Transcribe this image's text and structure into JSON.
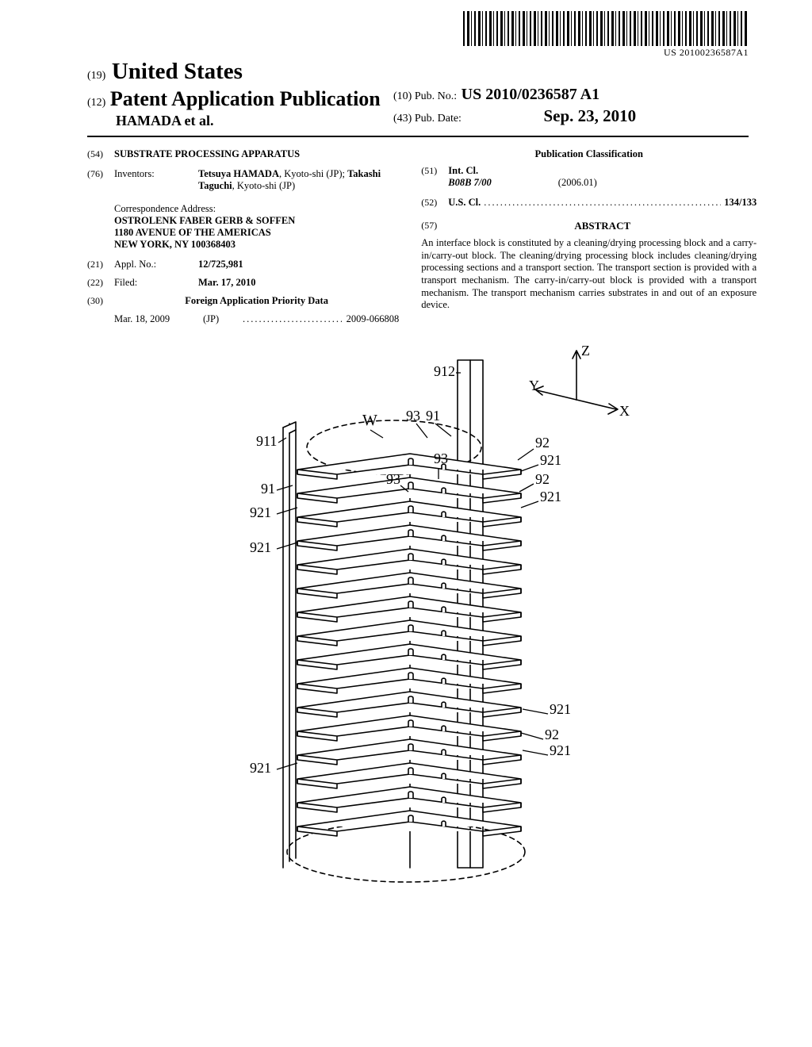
{
  "barcode_label": "US 20100236587A1",
  "header": {
    "code19": "(19)",
    "country": "United States",
    "code12": "(12)",
    "pub_type": "Patent Application Publication",
    "authors": "HAMADA et al.",
    "code10": "(10)",
    "pub_no_label": "Pub. No.:",
    "pub_no": "US 2010/0236587 A1",
    "code43": "(43)",
    "pub_date_label": "Pub. Date:",
    "pub_date": "Sep. 23, 2010"
  },
  "left": {
    "f54": {
      "num": "(54)",
      "value": "SUBSTRATE PROCESSING APPARATUS"
    },
    "f76": {
      "num": "(76)",
      "label": "Inventors:",
      "value_html": "<span class=\"bold\">Tetsuya HAMADA</span>, Kyoto-shi (JP); <span class=\"bold\">Takashi Taguchi</span>, Kyoto-shi (JP)"
    },
    "correspondence": {
      "label": "Correspondence Address:",
      "line1": "OSTROLENK FABER GERB & SOFFEN",
      "line2": "1180 AVENUE OF THE AMERICAS",
      "line3": "NEW YORK, NY 100368403"
    },
    "f21": {
      "num": "(21)",
      "label": "Appl. No.:",
      "value": "12/725,981"
    },
    "f22": {
      "num": "(22)",
      "label": "Filed:",
      "value": "Mar. 17, 2010"
    },
    "f30": {
      "num": "(30)",
      "heading": "Foreign Application Priority Data"
    },
    "foreign": {
      "date": "Mar. 18, 2009",
      "country": "(JP)",
      "number": "2009-066808"
    }
  },
  "right": {
    "pub_class": "Publication Classification",
    "f51": {
      "num": "(51)",
      "label": "Int. Cl.",
      "code": "B08B  7/00",
      "year": "(2006.01)"
    },
    "f52": {
      "num": "(52)",
      "label": "U.S. Cl.",
      "value": "134/133"
    },
    "f57": {
      "num": "(57)",
      "heading": "ABSTRACT"
    },
    "abstract": "An interface block is constituted by a cleaning/drying processing block and a carry-in/carry-out block. The cleaning/drying processing block includes cleaning/drying processing sections and a transport section. The transport section is provided with a transport mechanism. The carry-in/carry-out block is provided with a transport mechanism. The transport mechanism carries substrates in and out of an exposure device."
  },
  "figure": {
    "labels": {
      "Z": "Z",
      "Y": "Y",
      "X": "X",
      "W": "W",
      "r912": "912",
      "r911": "911",
      "r91a": "91",
      "r91b": "91",
      "r92a": "92",
      "r92b": "92",
      "r92c": "92",
      "r93a": "93",
      "r93b": "93",
      "r93c": "93",
      "r921a": "921",
      "r921b": "921",
      "r921c": "921",
      "r921d": "921",
      "r921e": "921",
      "r921f": "921"
    },
    "style": {
      "stroke": "#000000",
      "stroke_width": 1.6,
      "label_fontsize": 18,
      "big_label_fontsize": 20,
      "background": "#ffffff"
    }
  }
}
